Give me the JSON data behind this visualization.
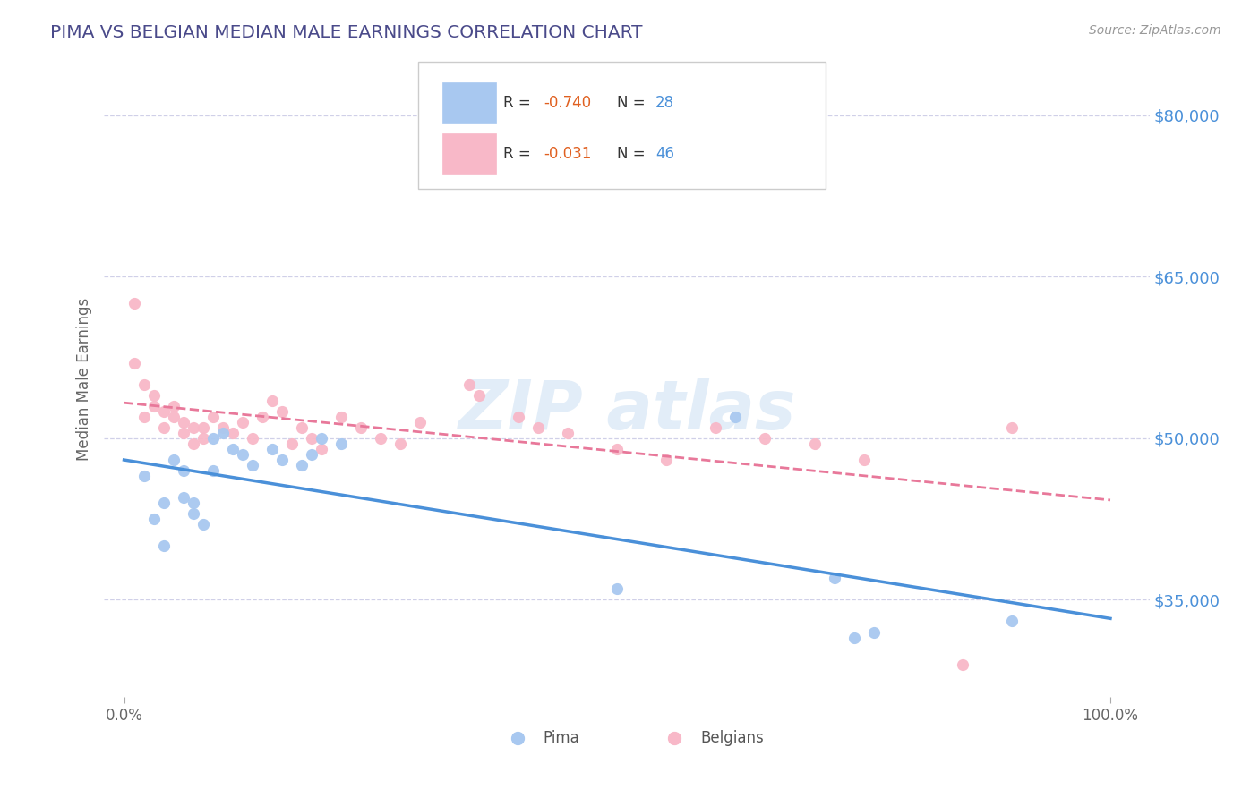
{
  "title": "PIMA VS BELGIAN MEDIAN MALE EARNINGS CORRELATION CHART",
  "source": "Source: ZipAtlas.com",
  "ylabel": "Median Male Earnings",
  "yticks": [
    35000,
    50000,
    65000,
    80000
  ],
  "ytick_labels": [
    "$35,000",
    "$50,000",
    "$65,000",
    "$80,000"
  ],
  "xlim": [
    -0.02,
    1.04
  ],
  "ylim": [
    26000,
    85000
  ],
  "pima_color": "#a8c8f0",
  "belgians_color": "#f8b8c8",
  "pima_line_color": "#4a90d9",
  "belgians_line_color": "#e8789a",
  "background_color": "#ffffff",
  "grid_color": "#d0d0e8",
  "pima_x": [
    0.02,
    0.03,
    0.04,
    0.04,
    0.05,
    0.06,
    0.06,
    0.07,
    0.07,
    0.08,
    0.09,
    0.09,
    0.1,
    0.11,
    0.12,
    0.13,
    0.15,
    0.16,
    0.18,
    0.19,
    0.2,
    0.22,
    0.5,
    0.62,
    0.72,
    0.74,
    0.76,
    0.9
  ],
  "pima_y": [
    46500,
    42500,
    44000,
    40000,
    48000,
    47000,
    44500,
    43000,
    44000,
    42000,
    50000,
    47000,
    50500,
    49000,
    48500,
    47500,
    49000,
    48000,
    47500,
    48500,
    50000,
    49500,
    36000,
    52000,
    37000,
    31500,
    32000,
    33000
  ],
  "belgians_x": [
    0.01,
    0.01,
    0.02,
    0.02,
    0.03,
    0.03,
    0.04,
    0.04,
    0.05,
    0.05,
    0.06,
    0.06,
    0.07,
    0.07,
    0.08,
    0.08,
    0.09,
    0.1,
    0.11,
    0.12,
    0.13,
    0.14,
    0.15,
    0.16,
    0.17,
    0.18,
    0.19,
    0.2,
    0.22,
    0.24,
    0.26,
    0.28,
    0.3,
    0.35,
    0.36,
    0.4,
    0.42,
    0.45,
    0.5,
    0.55,
    0.6,
    0.65,
    0.7,
    0.75,
    0.85,
    0.9
  ],
  "belgians_y": [
    62500,
    57000,
    55000,
    52000,
    54000,
    53000,
    52500,
    51000,
    53000,
    52000,
    51500,
    50500,
    51000,
    49500,
    51000,
    50000,
    52000,
    51000,
    50500,
    51500,
    50000,
    52000,
    53500,
    52500,
    49500,
    51000,
    50000,
    49000,
    52000,
    51000,
    50000,
    49500,
    51500,
    55000,
    54000,
    52000,
    51000,
    50500,
    49000,
    48000,
    51000,
    50000,
    49500,
    48000,
    29000,
    51000
  ],
  "legend_r1": "-0.740",
  "legend_n1": "28",
  "legend_r2": "-0.031",
  "legend_n2": "46",
  "title_color": "#4a4a8a",
  "source_color": "#999999",
  "ytick_color": "#4a90d9",
  "xtick_labels": [
    "0.0%",
    "100.0%"
  ],
  "xtick_vals": [
    0.0,
    1.0
  ],
  "r_val_color": "#e06020",
  "n_val_color": "#4a90d9",
  "watermark_color": "#c0d8f0"
}
